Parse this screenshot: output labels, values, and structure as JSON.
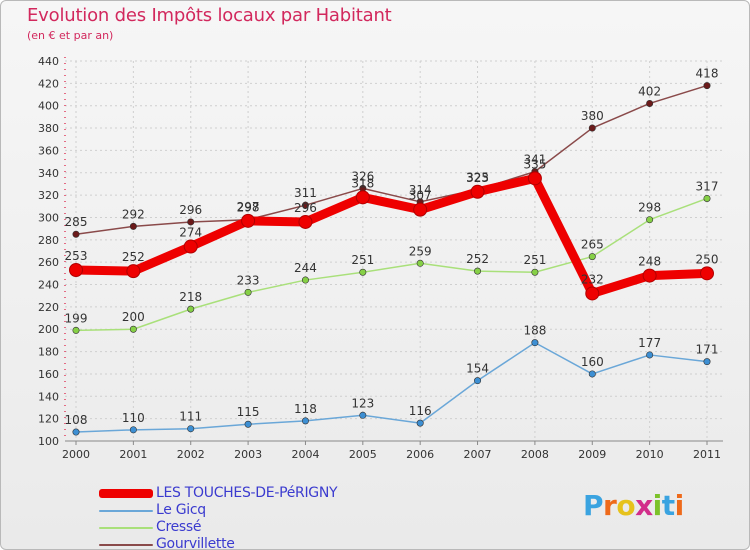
{
  "title": "Evolution des Impôts locaux par Habitant",
  "subtitle": "(en € et par an)",
  "logo_text": "Proxiti",
  "colors": {
    "title": "#d2285d",
    "legend_text": "#3b3bcf",
    "grid": "#cfcfcf",
    "axis": "#888888"
  },
  "chart_data": {
    "type": "line",
    "title": "Evolution des Impôts locaux par Habitant",
    "subtitle": "(en € et par an)",
    "x": [
      "2000",
      "2001",
      "2002",
      "2003",
      "2004",
      "2005",
      "2006",
      "2007",
      "2008",
      "2009",
      "2010",
      "2011"
    ],
    "ylim": [
      100,
      440
    ],
    "yticks": [
      100,
      120,
      140,
      160,
      180,
      200,
      220,
      240,
      260,
      280,
      300,
      320,
      340,
      360,
      380,
      400,
      420,
      440
    ],
    "grid": true,
    "legend_position": "bottom-left",
    "series": [
      {
        "name": "LES TOUCHES-DE-PéRIGNY",
        "values": [
          253,
          252,
          274,
          297,
          296,
          318,
          307,
          323,
          335,
          232,
          248,
          250
        ],
        "color": "#ee0000",
        "width": 9
      },
      {
        "name": "Le Gicq",
        "values": [
          108,
          110,
          111,
          115,
          118,
          123,
          116,
          154,
          188,
          160,
          177,
          171
        ],
        "color": "#6aa7d8",
        "marker": "#3d8fd3",
        "width": 1.5
      },
      {
        "name": "Cressé",
        "values": [
          199,
          200,
          218,
          233,
          244,
          251,
          259,
          252,
          251,
          265,
          298,
          317
        ],
        "color": "#a9e07a",
        "marker": "#86d046",
        "width": 1.5
      },
      {
        "name": "Gourvillette",
        "values": [
          285,
          292,
          296,
          298,
          311,
          326,
          314,
          325,
          341,
          380,
          402,
          418
        ],
        "color": "#8a4a4a",
        "marker": "#6b1a1a",
        "width": 1.5
      }
    ]
  }
}
